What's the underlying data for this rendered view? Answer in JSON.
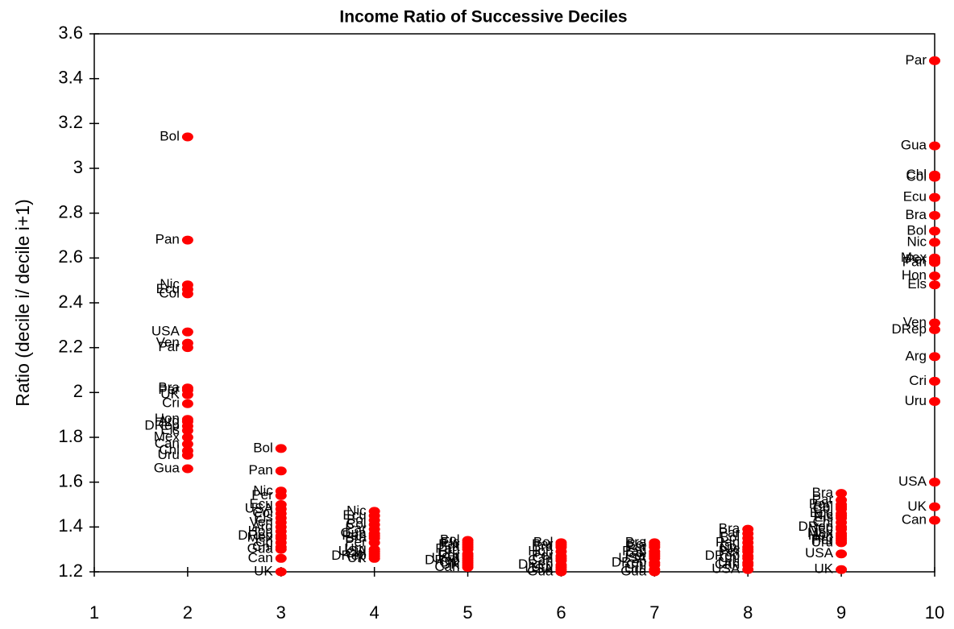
{
  "chart_data": {
    "type": "scatter",
    "title": "Income Ratio of Successive Deciles",
    "y_label": "Ratio (decile i/ decile i+1)",
    "color": "#ff0000",
    "xlim": [
      1,
      10
    ],
    "xticks": [
      1,
      2,
      3,
      4,
      5,
      6,
      7,
      8,
      9,
      10
    ],
    "ylim": [
      1.2,
      3.6
    ],
    "yticks": [
      1.2,
      1.4,
      1.6,
      1.8,
      2,
      2.2,
      2.4,
      2.6,
      2.8,
      3,
      3.2,
      3.4,
      3.6
    ],
    "series": [
      {
        "x": 2,
        "labels": [
          "Bol",
          "Pan",
          "Nic",
          "Ecu",
          "Col",
          "USA",
          "Ven",
          "Par",
          "Bra",
          "Per",
          "UK",
          "Cri",
          "Hon",
          "Arg",
          "DRep",
          "Els",
          "Mex",
          "Can",
          "Chl",
          "Uru",
          "Gua"
        ],
        "values": [
          3.14,
          2.68,
          2.48,
          2.46,
          2.44,
          2.27,
          2.22,
          2.2,
          2.02,
          2.01,
          1.99,
          1.95,
          1.88,
          1.87,
          1.85,
          1.83,
          1.8,
          1.77,
          1.74,
          1.72,
          1.66
        ]
      },
      {
        "x": 3,
        "labels": [
          "Bol",
          "Pan",
          "Nic",
          "Per",
          "Ecu",
          "USA",
          "Col",
          "Els",
          "Ven",
          "Arg",
          "Hon",
          "DRep",
          "Mex",
          "Cri",
          "Chl",
          "Gua",
          "Can",
          "UK"
        ],
        "values": [
          1.75,
          1.65,
          1.56,
          1.54,
          1.5,
          1.48,
          1.46,
          1.44,
          1.42,
          1.4,
          1.38,
          1.36,
          1.35,
          1.33,
          1.31,
          1.3,
          1.26,
          1.2
        ]
      },
      {
        "x": 4,
        "labels": [
          "Nic",
          "Ecu",
          "Bol",
          "Col",
          "Par",
          "Gua",
          "Pan",
          "Bra",
          "Per",
          "Uru",
          "USA",
          "Chl",
          "DRep",
          "UK"
        ],
        "values": [
          1.47,
          1.45,
          1.43,
          1.41,
          1.39,
          1.37,
          1.36,
          1.35,
          1.33,
          1.3,
          1.29,
          1.28,
          1.27,
          1.26
        ]
      },
      {
        "x": 5,
        "labels": [
          "Bol",
          "Els",
          "Par",
          "Bra",
          "Pan",
          "Uru",
          "Per",
          "USA",
          "DRep",
          "Chl",
          "UK",
          "Can"
        ],
        "values": [
          1.34,
          1.33,
          1.32,
          1.31,
          1.3,
          1.28,
          1.27,
          1.26,
          1.25,
          1.24,
          1.23,
          1.22
        ]
      },
      {
        "x": 6,
        "labels": [
          "Bol",
          "Par",
          "Bra",
          "Hon",
          "Per",
          "Chl",
          "Can",
          "DRep",
          "Uru",
          "USA",
          "Gua"
        ],
        "values": [
          1.33,
          1.32,
          1.31,
          1.29,
          1.27,
          1.26,
          1.25,
          1.23,
          1.22,
          1.21,
          1.2
        ]
      },
      {
        "x": 7,
        "labels": [
          "Bra",
          "Bol",
          "Par",
          "Pan",
          "Col",
          "Per",
          "USA",
          "DRep",
          "Chl",
          "Uru",
          "Gua"
        ],
        "values": [
          1.33,
          1.32,
          1.31,
          1.29,
          1.28,
          1.27,
          1.26,
          1.24,
          1.23,
          1.21,
          1.2
        ]
      },
      {
        "x": 8,
        "labels": [
          "Bra",
          "Par",
          "Bol",
          "Pan",
          "Col",
          "Nic",
          "Per",
          "DRep",
          "Chl",
          "Uru",
          "Can",
          "USA"
        ],
        "values": [
          1.39,
          1.37,
          1.35,
          1.33,
          1.31,
          1.3,
          1.29,
          1.27,
          1.26,
          1.24,
          1.23,
          1.21
        ]
      },
      {
        "x": 9,
        "labels": [
          "Bra",
          "Par",
          "Pan",
          "Bol",
          "Col",
          "Ecu",
          "Nic",
          "Els",
          "Chl",
          "DRep",
          "Ven",
          "Mex",
          "Hon",
          "Arg",
          "Per",
          "Uru",
          "USA",
          "UK"
        ],
        "values": [
          1.55,
          1.52,
          1.5,
          1.49,
          1.48,
          1.46,
          1.45,
          1.44,
          1.42,
          1.4,
          1.39,
          1.37,
          1.36,
          1.35,
          1.34,
          1.33,
          1.28,
          1.21
        ]
      },
      {
        "x": 10,
        "labels": [
          "Par",
          "Gua",
          "Chl",
          "Col",
          "Ecu",
          "Bra",
          "Bol",
          "Nic",
          "Mex",
          "Per",
          "Pan",
          "Hon",
          "Els",
          "Ven",
          "DRep",
          "Arg",
          "Cri",
          "Uru",
          "USA",
          "UK",
          "Can"
        ],
        "values": [
          3.48,
          3.1,
          2.97,
          2.96,
          2.87,
          2.79,
          2.72,
          2.67,
          2.6,
          2.59,
          2.58,
          2.52,
          2.48,
          2.31,
          2.28,
          2.16,
          2.05,
          1.96,
          1.6,
          1.49,
          1.43
        ]
      }
    ]
  }
}
